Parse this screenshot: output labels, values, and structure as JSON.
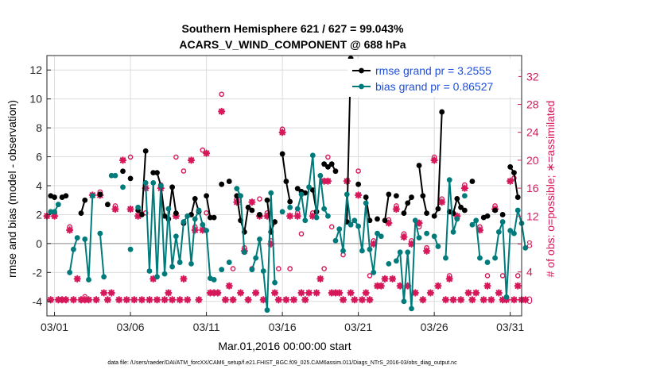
{
  "chart_data": {
    "type": "line",
    "title": "Southern Hemisphere 621 / 627 = 99.043%",
    "subtitle": "ACARS_V_WIND_COMPONENT @ 688 hPa",
    "xlabel": "Mar.01,2016 00:00:00 start",
    "ylabel": "rmse and bias (model - observation)",
    "y2label": "# of obs: o=possible; ∗=assimilated",
    "footnote": "data file: /Users/raeder/DAI/ATM_forcXX/CAM6_setup/f.e21.FHIST_BGC.f09_025.CAM6assim.011/Diags_NTrS_2016-03/obs_diag_output.nc",
    "xlim": [
      0.5,
      31.75
    ],
    "ylim": [
      -5,
      13
    ],
    "y2lim": [
      -2.3,
      35
    ],
    "x_ticks": [
      1,
      6,
      11,
      16,
      21,
      26,
      31
    ],
    "x_tick_labels": [
      "03/01",
      "03/06",
      "03/11",
      "03/16",
      "03/21",
      "03/26",
      "03/31"
    ],
    "y_ticks": [
      -4,
      -2,
      0,
      2,
      4,
      6,
      8,
      10,
      12
    ],
    "y2_ticks": [
      0,
      4,
      8,
      12,
      16,
      20,
      24,
      28,
      32
    ],
    "grid": true,
    "legend_position": "top-right",
    "colors": {
      "rmse": "#000000",
      "bias": "#007b7b",
      "obs": "#d6175a",
      "zero": "#a0a0a0",
      "legend_text": "#1f4fd6"
    },
    "series": [
      {
        "name": "rmse grand pr = 3.2555",
        "color": "#000000",
        "points": [
          [
            0.75,
            3.3
          ],
          [
            1.0,
            3.2
          ],
          [
            1.5,
            3.2
          ],
          [
            1.75,
            3.3
          ],
          [
            2.75,
            2.1
          ],
          [
            3.0,
            3.0
          ],
          [
            4.0,
            3.4
          ],
          [
            4.5,
            2.7
          ],
          [
            5.5,
            5.0
          ],
          [
            6.0,
            4.5
          ],
          [
            6.5,
            2.3
          ],
          [
            6.75,
            2.0
          ],
          [
            7.0,
            6.4
          ],
          [
            7.5,
            4.9
          ],
          [
            7.75,
            4.9
          ],
          [
            8.0,
            4.0
          ],
          [
            8.25,
            1.9
          ],
          [
            8.5,
            1.7
          ],
          [
            8.75,
            3.9
          ],
          [
            9.0,
            2.1
          ],
          [
            9.5,
            1.4
          ],
          [
            10.0,
            2.0
          ],
          [
            10.25,
            3.1
          ],
          [
            10.5,
            2.2
          ],
          [
            11.0,
            3.3
          ],
          [
            11.25,
            1.8
          ],
          [
            11.5,
            1.8
          ],
          [
            12.0,
            4.1
          ],
          [
            12.5,
            4.3
          ],
          [
            13.0,
            3.3
          ],
          [
            13.25,
            1.6
          ],
          [
            13.5,
            0.8
          ],
          [
            13.75,
            2.5
          ],
          [
            14.0,
            2.3
          ],
          [
            14.5,
            2.0
          ],
          [
            15.0,
            3.0
          ],
          [
            15.25,
            0.8
          ],
          [
            15.5,
            1.5
          ],
          [
            16.0,
            6.2
          ],
          [
            16.25,
            4.3
          ],
          [
            16.5,
            2.9
          ],
          [
            17.0,
            3.8
          ],
          [
            17.25,
            3.6
          ],
          [
            17.5,
            3.5
          ],
          [
            18.0,
            3.7
          ],
          [
            18.25,
            2.2
          ],
          [
            18.75,
            5.5
          ],
          [
            19.0,
            5.3
          ],
          [
            19.25,
            5.5
          ],
          [
            19.5,
            5.0
          ],
          [
            20.25,
            1.5
          ],
          [
            20.5,
            12.8
          ],
          [
            21.0,
            4.1
          ],
          [
            21.5,
            3.2
          ],
          [
            21.75,
            1.6
          ],
          [
            22.25,
            1.7
          ],
          [
            22.75,
            1.6
          ],
          [
            23.0,
            3.4
          ],
          [
            23.5,
            3.3
          ],
          [
            24.0,
            2.1
          ],
          [
            24.25,
            2.8
          ],
          [
            24.5,
            3.2
          ],
          [
            25.0,
            5.4
          ],
          [
            25.25,
            3.3
          ],
          [
            25.5,
            2.1
          ],
          [
            26.0,
            1.9
          ],
          [
            26.25,
            2.4
          ],
          [
            26.5,
            9.1
          ],
          [
            27.0,
            2.2
          ],
          [
            27.25,
            2.1
          ],
          [
            27.5,
            3.1
          ],
          [
            27.75,
            2.5
          ],
          [
            28.0,
            2.3
          ],
          [
            28.5,
            4.3
          ],
          [
            29.25,
            1.8
          ],
          [
            29.5,
            1.9
          ],
          [
            30.0,
            2.3
          ],
          [
            30.5,
            2.0
          ],
          [
            31.0,
            5.3
          ],
          [
            31.25,
            4.9
          ],
          [
            31.5,
            3.2
          ]
        ]
      },
      {
        "name": "bias grand pr = 0.86527",
        "color": "#007b7b",
        "points": [
          [
            0.75,
            2.2
          ],
          [
            1.0,
            2.2
          ],
          [
            1.25,
            2.7
          ],
          [
            2.0,
            -2.0
          ],
          [
            2.25,
            -0.4
          ],
          [
            2.5,
            0.4
          ],
          [
            3.0,
            0.3
          ],
          [
            3.25,
            -2.5
          ],
          [
            3.5,
            3.3
          ],
          [
            4.0,
            0.7
          ],
          [
            4.25,
            -2.3
          ],
          [
            4.75,
            4.7
          ],
          [
            5.0,
            4.7
          ],
          [
            5.5,
            3.9
          ],
          [
            6.0,
            -0.4
          ],
          [
            6.5,
            2.5
          ],
          [
            7.0,
            4.2
          ],
          [
            7.25,
            -1.9
          ],
          [
            7.5,
            4.2
          ],
          [
            7.75,
            -2.3
          ],
          [
            8.0,
            4.0
          ],
          [
            8.25,
            -2.1
          ],
          [
            8.5,
            2.4
          ],
          [
            8.75,
            -1.6
          ],
          [
            9.0,
            0.5
          ],
          [
            9.25,
            -1.3
          ],
          [
            9.5,
            1.5
          ],
          [
            9.75,
            1.9
          ],
          [
            10.0,
            -1.4
          ],
          [
            10.25,
            1.7
          ],
          [
            10.5,
            2.3
          ],
          [
            10.75,
            1.3
          ],
          [
            11.0,
            0.9
          ],
          [
            11.25,
            -2.4
          ],
          [
            11.5,
            -2.5
          ],
          [
            12.0,
            -1.8
          ],
          [
            12.5,
            -1.3
          ],
          [
            13.0,
            3.8
          ],
          [
            13.25,
            3.3
          ],
          [
            13.5,
            -0.6
          ],
          [
            14.0,
            -1.8
          ],
          [
            14.25,
            -1.0
          ],
          [
            14.5,
            0.3
          ],
          [
            14.75,
            -1.9
          ],
          [
            15.0,
            -4.6
          ],
          [
            15.25,
            3.5
          ],
          [
            15.5,
            -2.7
          ],
          [
            16.0,
            2.2
          ],
          [
            16.5,
            2.5
          ],
          [
            17.0,
            2.4
          ],
          [
            17.25,
            3.4
          ],
          [
            17.5,
            1.6
          ],
          [
            17.75,
            3.9
          ],
          [
            18.0,
            6.1
          ],
          [
            18.25,
            1.8
          ],
          [
            18.5,
            4.7
          ],
          [
            18.75,
            2.4
          ],
          [
            19.0,
            1.9
          ],
          [
            19.5,
            0.2
          ],
          [
            19.75,
            1.0
          ],
          [
            20.0,
            -0.5
          ],
          [
            20.25,
            3.4
          ],
          [
            20.5,
            1.3
          ],
          [
            20.75,
            1.6
          ],
          [
            21.0,
            1.2
          ],
          [
            21.25,
            -0.5
          ],
          [
            21.5,
            2.8
          ],
          [
            21.75,
            -0.4
          ],
          [
            22.0,
            -2.0
          ],
          [
            22.25,
            0.7
          ],
          [
            22.5,
            0.5
          ],
          [
            23.0,
            -1.4
          ],
          [
            23.5,
            -1.2
          ],
          [
            23.75,
            -0.6
          ],
          [
            24.0,
            -4.0
          ],
          [
            24.25,
            -0.6
          ],
          [
            24.5,
            -4.5
          ],
          [
            24.75,
            1.6
          ],
          [
            25.0,
            0.4
          ],
          [
            25.5,
            0.7
          ],
          [
            26.0,
            0.5
          ],
          [
            26.25,
            -0.2
          ],
          [
            26.75,
            -1.0
          ],
          [
            27.0,
            4.4
          ],
          [
            27.25,
            0.8
          ],
          [
            27.5,
            1.7
          ],
          [
            28.0,
            3.3
          ],
          [
            28.5,
            1.3
          ],
          [
            28.75,
            1.6
          ],
          [
            29.0,
            -1.0
          ],
          [
            29.5,
            -1.3
          ],
          [
            30.0,
            -1.0
          ],
          [
            30.25,
            0.8
          ],
          [
            30.5,
            1.5
          ],
          [
            30.75,
            -3.7
          ],
          [
            31.0,
            0.9
          ],
          [
            31.25,
            0.7
          ],
          [
            31.5,
            2.3
          ],
          [
            31.75,
            1.4
          ],
          [
            32.0,
            -0.3
          ]
        ]
      }
    ],
    "obs_possible": [
      [
        1.0,
        12
      ],
      [
        2.0,
        10
      ],
      [
        3.0,
        0
      ],
      [
        4.0,
        15
      ],
      [
        5.0,
        13
      ],
      [
        6.0,
        20
      ],
      [
        7.0,
        12
      ],
      [
        8.0,
        16
      ],
      [
        9.0,
        20
      ],
      [
        9.5,
        18
      ],
      [
        10.25,
        10
      ],
      [
        10.75,
        21
      ],
      [
        11.0,
        12
      ],
      [
        12.0,
        29
      ],
      [
        12.75,
        4
      ],
      [
        13.0,
        14
      ],
      [
        13.5,
        7
      ],
      [
        14.0,
        4
      ],
      [
        14.5,
        14
      ],
      [
        15.0,
        12
      ],
      [
        15.25,
        8
      ],
      [
        15.75,
        4
      ],
      [
        16.0,
        24
      ],
      [
        16.5,
        4
      ],
      [
        17.0,
        12
      ],
      [
        17.25,
        9
      ],
      [
        18.0,
        12
      ],
      [
        18.75,
        4
      ],
      [
        19.0,
        20
      ],
      [
        19.25,
        10
      ],
      [
        19.5,
        18
      ],
      [
        20.0,
        6
      ],
      [
        21.0,
        18
      ],
      [
        21.75,
        3
      ],
      [
        22.0,
        8
      ],
      [
        23.0,
        11
      ],
      [
        23.5,
        13
      ],
      [
        24.0,
        9
      ],
      [
        24.5,
        8
      ],
      [
        25.0,
        10
      ],
      [
        25.5,
        7
      ],
      [
        26.0,
        20
      ],
      [
        26.5,
        14
      ],
      [
        27.0,
        3
      ],
      [
        28.0,
        16
      ],
      [
        29.0,
        10
      ],
      [
        29.5,
        3
      ],
      [
        30.0,
        13
      ],
      [
        30.5,
        3
      ],
      [
        31.25,
        17
      ],
      [
        31.5,
        3
      ]
    ],
    "obs_assimilated": [
      [
        0.5,
        12
      ],
      [
        0.75,
        0
      ],
      [
        1.0,
        12
      ],
      [
        1.25,
        0
      ],
      [
        1.5,
        0
      ],
      [
        1.75,
        0
      ],
      [
        2.0,
        10
      ],
      [
        2.25,
        0
      ],
      [
        2.5,
        3
      ],
      [
        2.75,
        0
      ],
      [
        3.0,
        0
      ],
      [
        3.25,
        0
      ],
      [
        3.5,
        15
      ],
      [
        3.75,
        0
      ],
      [
        4.0,
        15
      ],
      [
        4.25,
        1
      ],
      [
        4.5,
        0
      ],
      [
        4.75,
        1
      ],
      [
        5.0,
        13
      ],
      [
        5.25,
        0
      ],
      [
        5.5,
        20
      ],
      [
        5.75,
        0
      ],
      [
        6.0,
        13
      ],
      [
        6.25,
        0
      ],
      [
        6.5,
        12
      ],
      [
        6.75,
        0
      ],
      [
        7.0,
        16
      ],
      [
        7.25,
        0
      ],
      [
        7.5,
        3
      ],
      [
        7.75,
        0
      ],
      [
        8.0,
        16
      ],
      [
        8.25,
        0
      ],
      [
        8.5,
        1
      ],
      [
        8.75,
        0
      ],
      [
        9.0,
        12
      ],
      [
        9.25,
        0
      ],
      [
        9.5,
        3
      ],
      [
        9.75,
        0
      ],
      [
        10.0,
        20
      ],
      [
        10.25,
        10
      ],
      [
        10.5,
        0
      ],
      [
        10.75,
        10
      ],
      [
        11.0,
        21
      ],
      [
        11.25,
        1
      ],
      [
        11.5,
        1
      ],
      [
        11.75,
        1
      ],
      [
        12.0,
        27
      ],
      [
        12.25,
        0
      ],
      [
        12.5,
        2
      ],
      [
        12.75,
        0
      ],
      [
        13.0,
        14
      ],
      [
        13.25,
        1
      ],
      [
        13.5,
        7
      ],
      [
        13.75,
        0
      ],
      [
        14.0,
        14
      ],
      [
        14.25,
        1
      ],
      [
        14.5,
        12
      ],
      [
        14.75,
        0
      ],
      [
        15.0,
        12
      ],
      [
        15.25,
        8
      ],
      [
        15.5,
        1
      ],
      [
        15.75,
        0
      ],
      [
        16.0,
        24
      ],
      [
        16.25,
        0
      ],
      [
        16.5,
        12
      ],
      [
        16.75,
        0
      ],
      [
        17.0,
        12
      ],
      [
        17.25,
        1
      ],
      [
        17.5,
        0
      ],
      [
        17.75,
        1
      ],
      [
        18.0,
        12
      ],
      [
        18.25,
        1
      ],
      [
        18.5,
        3
      ],
      [
        18.75,
        17
      ],
      [
        19.0,
        17
      ],
      [
        19.25,
        1
      ],
      [
        19.5,
        1
      ],
      [
        19.75,
        1
      ],
      [
        20.0,
        0
      ],
      [
        20.25,
        17
      ],
      [
        20.5,
        1
      ],
      [
        20.75,
        0
      ],
      [
        21.0,
        15
      ],
      [
        21.25,
        0
      ],
      [
        21.5,
        1
      ],
      [
        21.75,
        0
      ],
      [
        22.0,
        8
      ],
      [
        22.25,
        2
      ],
      [
        22.5,
        2
      ],
      [
        22.75,
        3
      ],
      [
        23.0,
        11
      ],
      [
        23.25,
        3
      ],
      [
        23.5,
        13
      ],
      [
        23.75,
        2
      ],
      [
        24.0,
        9
      ],
      [
        24.25,
        2
      ],
      [
        24.5,
        8
      ],
      [
        24.75,
        1
      ],
      [
        25.0,
        11
      ],
      [
        25.25,
        0
      ],
      [
        25.5,
        7
      ],
      [
        25.75,
        1
      ],
      [
        26.0,
        20
      ],
      [
        26.25,
        2
      ],
      [
        26.5,
        14
      ],
      [
        26.75,
        0
      ],
      [
        27.0,
        3
      ],
      [
        27.25,
        0
      ],
      [
        27.5,
        12
      ],
      [
        27.75,
        0
      ],
      [
        28.0,
        16
      ],
      [
        28.25,
        1
      ],
      [
        28.5,
        0
      ],
      [
        28.75,
        1
      ],
      [
        29.0,
        10
      ],
      [
        29.25,
        0
      ],
      [
        29.5,
        2
      ],
      [
        29.75,
        0
      ],
      [
        30.0,
        13
      ],
      [
        30.25,
        1
      ],
      [
        30.5,
        0
      ],
      [
        30.75,
        0
      ],
      [
        31.0,
        17
      ],
      [
        31.25,
        0
      ],
      [
        31.5,
        2
      ],
      [
        31.75,
        0
      ],
      [
        32.0,
        0
      ]
    ]
  }
}
